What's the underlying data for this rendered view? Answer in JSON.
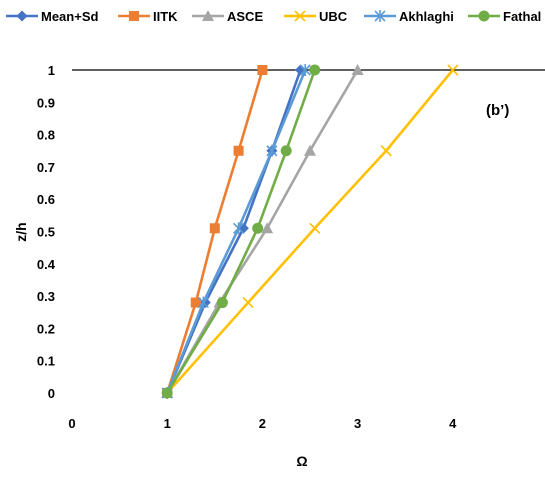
{
  "chart_data": {
    "type": "line",
    "title": "",
    "panel_label": "(b’)",
    "xlabel": "Ω",
    "ylabel": "z/h",
    "xlim": [
      0,
      5
    ],
    "ylim": [
      0,
      1
    ],
    "x_ticks": [
      "0",
      "1",
      "2",
      "3",
      "4"
    ],
    "y_ticks": [
      "0",
      "0.1",
      "0.2",
      "0.3",
      "0.4",
      "0.5",
      "0.6",
      "0.7",
      "0.8",
      "0.9",
      "1"
    ],
    "grid": false,
    "legend_position": "top",
    "series": [
      {
        "name": "Mean+Sd",
        "color": "#4472C4",
        "marker": "diamond",
        "x": [
          1.0,
          1.4,
          1.8,
          2.1,
          2.4
        ],
        "y": [
          0,
          0.28,
          0.51,
          0.75,
          1.0
        ]
      },
      {
        "name": "IITK",
        "color": "#ED7D31",
        "marker": "square",
        "x": [
          1.0,
          1.3,
          1.5,
          1.75,
          2.0
        ],
        "y": [
          0,
          0.28,
          0.51,
          0.75,
          1.0
        ]
      },
      {
        "name": "ASCE",
        "color": "#A5A5A5",
        "marker": "triangle",
        "x": [
          1.0,
          1.55,
          2.05,
          2.5,
          3.0
        ],
        "y": [
          0,
          0.28,
          0.51,
          0.75,
          1.0
        ]
      },
      {
        "name": "UBC",
        "color": "#FFC000",
        "marker": "x",
        "x": [
          1.0,
          1.85,
          2.55,
          3.3,
          4.0
        ],
        "y": [
          0,
          0.28,
          0.51,
          0.75,
          1.0
        ]
      },
      {
        "name": "Akhlaghi",
        "color": "#5B9BD5",
        "marker": "asterisk",
        "x": [
          1.0,
          1.38,
          1.75,
          2.1,
          2.45
        ],
        "y": [
          0,
          0.28,
          0.51,
          0.75,
          1.0
        ]
      },
      {
        "name": "Fathal",
        "color": "#70AD47",
        "marker": "circle",
        "x": [
          1.0,
          1.58,
          1.95,
          2.25,
          2.55
        ],
        "y": [
          0,
          0.28,
          0.51,
          0.75,
          1.0
        ]
      }
    ]
  }
}
